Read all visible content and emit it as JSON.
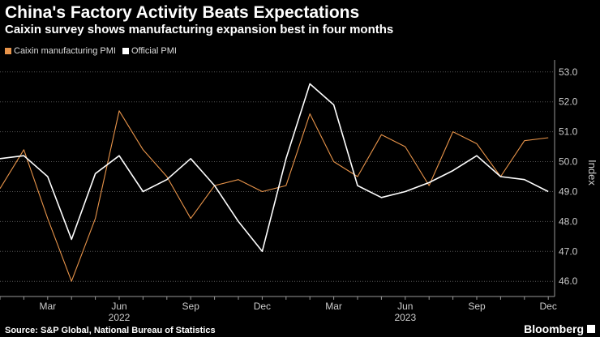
{
  "title": "China's Factory Activity Beats Expectations",
  "subtitle": "Caixin survey shows manufacturing expansion best in four months",
  "source": "Source: S&P Global, National Bureau of Statistics",
  "brand": "Bloomberg",
  "colors": {
    "background": "#000000",
    "caixin": "#e8944a",
    "official": "#ffffff",
    "grid": "#555555",
    "axis_text": "#cccccc"
  },
  "chart_data": {
    "type": "line",
    "ylabel": "Index",
    "ylim": [
      45.6,
      53.4
    ],
    "yticks": [
      "46.0",
      "47.0",
      "48.0",
      "49.0",
      "50.0",
      "51.0",
      "52.0",
      "53.0"
    ],
    "grid": true,
    "legend_position": "top-left",
    "x": [
      "2022-01",
      "2022-02",
      "2022-03",
      "2022-04",
      "2022-05",
      "2022-06",
      "2022-07",
      "2022-08",
      "2022-09",
      "2022-10",
      "2022-11",
      "2022-12",
      "2023-01",
      "2023-02",
      "2023-03",
      "2023-04",
      "2023-05",
      "2023-06",
      "2023-07",
      "2023-08",
      "2023-09",
      "2023-10",
      "2023-11",
      "2023-12"
    ],
    "xtick_labels": [
      {
        "x": "2022-03",
        "label": "Mar"
      },
      {
        "x": "2022-06",
        "label": "Jun"
      },
      {
        "x": "2022-09",
        "label": "Sep"
      },
      {
        "x": "2022-12",
        "label": "Dec"
      },
      {
        "x": "2023-03",
        "label": "Mar"
      },
      {
        "x": "2023-06",
        "label": "Jun"
      },
      {
        "x": "2023-09",
        "label": "Sep"
      },
      {
        "x": "2023-12",
        "label": "Dec"
      }
    ],
    "year_labels": [
      {
        "x": "2022-06",
        "label": "2022"
      },
      {
        "x": "2023-06",
        "label": "2023"
      }
    ],
    "series": [
      {
        "name": "Caixin manufacturing PMI",
        "color": "#e8944a",
        "values": [
          49.1,
          50.4,
          48.1,
          46.0,
          48.1,
          51.7,
          50.4,
          49.5,
          48.1,
          49.2,
          49.4,
          49.0,
          49.2,
          51.6,
          50.0,
          49.5,
          50.9,
          50.5,
          49.2,
          51.0,
          50.6,
          49.5,
          50.7,
          50.8
        ]
      },
      {
        "name": "Official PMI",
        "color": "#ffffff",
        "values": [
          50.1,
          50.2,
          49.5,
          47.4,
          49.6,
          50.2,
          49.0,
          49.4,
          50.1,
          49.2,
          48.0,
          47.0,
          50.1,
          52.6,
          51.9,
          49.2,
          48.8,
          49.0,
          49.3,
          49.7,
          50.2,
          49.5,
          49.4,
          49.0
        ]
      }
    ]
  }
}
